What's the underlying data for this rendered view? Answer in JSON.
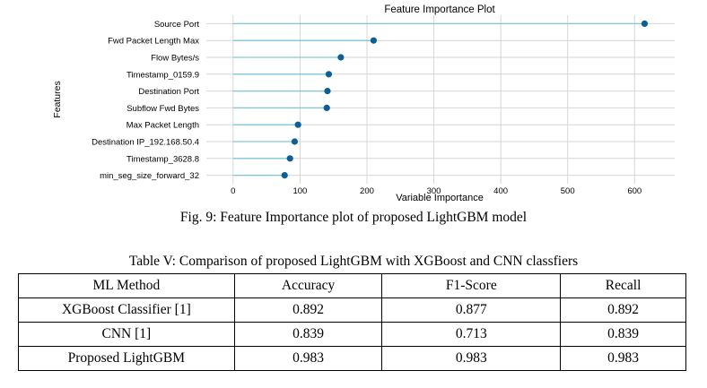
{
  "chart_data": {
    "type": "scatter",
    "title": "Feature Importance Plot",
    "xlabel": "Variable Importance",
    "ylabel": "Features",
    "xlim": [
      -40,
      660
    ],
    "xticks": [
      0,
      100,
      200,
      300,
      400,
      500,
      600
    ],
    "grid": true,
    "categories": [
      "Source Port",
      "Fwd Packet Length Max",
      "Flow Bytes/s",
      "Timestamp_0159.9",
      "Destination Port",
      "Subflow Fwd Bytes",
      "Max Packet Length",
      "Destination IP_192.168.50.4",
      "Timestamp_3628.8",
      "min_seg_size_forward_32"
    ],
    "values": [
      615,
      210,
      161,
      143,
      141,
      140,
      97,
      92,
      85,
      77
    ],
    "colors": {
      "stem": "#7ec8dd",
      "dot": "#0c5f97",
      "grid": "#d6d6d6",
      "plot_bg": "#ffffff"
    }
  },
  "figure_caption": "Fig. 9: Feature Importance plot of proposed LightGBM model",
  "table": {
    "caption": "Table V: Comparison of proposed LightGBM with XGBoost and CNN classfiers",
    "headers": [
      "ML Method",
      "Accuracy",
      "F1-Score",
      "Recall"
    ],
    "rows": [
      [
        "XGBoost Classifier [1]",
        "0.892",
        "0.877",
        "0.892"
      ],
      [
        "CNN [1]",
        "0.839",
        "0.713",
        "0.839"
      ],
      [
        "Proposed LightGBM",
        "0.983",
        "0.983",
        "0.983"
      ]
    ]
  }
}
